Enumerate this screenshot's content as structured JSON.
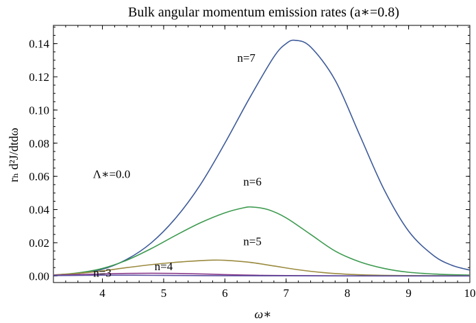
{
  "chart_data": {
    "type": "line",
    "title": "Bulk angular momentum emission rates (a∗=0.8)",
    "xlabel": "ω∗",
    "ylabel": "rₕ d²J/dtdω",
    "xlim": [
      3.2,
      10.0
    ],
    "ylim": [
      -0.004,
      0.151
    ],
    "x_ticks": [
      {
        "value": 4,
        "label": "4"
      },
      {
        "value": 5,
        "label": "5"
      },
      {
        "value": 6,
        "label": "6"
      },
      {
        "value": 7,
        "label": "7"
      },
      {
        "value": 8,
        "label": "8"
      },
      {
        "value": 9,
        "label": "9"
      },
      {
        "value": 10,
        "label": "10"
      }
    ],
    "y_ticks": [
      {
        "value": 0.0,
        "label": "0.00"
      },
      {
        "value": 0.02,
        "label": "0.02"
      },
      {
        "value": 0.04,
        "label": "0.04"
      },
      {
        "value": 0.06,
        "label": "0.06"
      },
      {
        "value": 0.08,
        "label": "0.08"
      },
      {
        "value": 0.1,
        "label": "0.10"
      },
      {
        "value": 0.12,
        "label": "0.12"
      },
      {
        "value": 0.14,
        "label": "0.14"
      }
    ],
    "grid": false,
    "series": [
      {
        "name": "n=7",
        "color": "#3d5a99",
        "points": [
          [
            3.2,
            0.0005
          ],
          [
            3.6,
            0.0015
          ],
          [
            4.0,
            0.004
          ],
          [
            4.4,
            0.01
          ],
          [
            4.8,
            0.02
          ],
          [
            5.2,
            0.035
          ],
          [
            5.6,
            0.055
          ],
          [
            6.0,
            0.08
          ],
          [
            6.4,
            0.107
          ],
          [
            6.8,
            0.132
          ],
          [
            7.0,
            0.14
          ],
          [
            7.15,
            0.142
          ],
          [
            7.4,
            0.138
          ],
          [
            7.8,
            0.118
          ],
          [
            8.2,
            0.085
          ],
          [
            8.6,
            0.052
          ],
          [
            9.0,
            0.027
          ],
          [
            9.4,
            0.0125
          ],
          [
            9.7,
            0.0065
          ],
          [
            10.0,
            0.0035
          ]
        ]
      },
      {
        "name": "n=6",
        "color": "#3c9a4f",
        "points": [
          [
            3.2,
            0.0005
          ],
          [
            3.6,
            0.0018
          ],
          [
            4.0,
            0.0045
          ],
          [
            4.4,
            0.0095
          ],
          [
            4.8,
            0.0165
          ],
          [
            5.2,
            0.0245
          ],
          [
            5.6,
            0.032
          ],
          [
            6.0,
            0.038
          ],
          [
            6.3,
            0.041
          ],
          [
            6.45,
            0.0415
          ],
          [
            6.7,
            0.04
          ],
          [
            7.0,
            0.035
          ],
          [
            7.4,
            0.025
          ],
          [
            7.8,
            0.015
          ],
          [
            8.2,
            0.0085
          ],
          [
            8.6,
            0.0045
          ],
          [
            9.0,
            0.0022
          ],
          [
            9.5,
            0.001
          ],
          [
            10.0,
            0.0005
          ]
        ]
      },
      {
        "name": "n=5",
        "color": "#9a8a3e",
        "points": [
          [
            3.2,
            0.0006
          ],
          [
            3.6,
            0.0015
          ],
          [
            4.0,
            0.003
          ],
          [
            4.4,
            0.005
          ],
          [
            4.8,
            0.0068
          ],
          [
            5.2,
            0.0082
          ],
          [
            5.6,
            0.0092
          ],
          [
            5.8,
            0.0095
          ],
          [
            6.0,
            0.0094
          ],
          [
            6.4,
            0.0082
          ],
          [
            6.8,
            0.006
          ],
          [
            7.2,
            0.0037
          ],
          [
            7.6,
            0.002
          ],
          [
            8.0,
            0.001
          ],
          [
            8.5,
            0.0004
          ],
          [
            9.0,
            0.0002
          ],
          [
            10.0,
            0.0001
          ]
        ]
      },
      {
        "name": "n=4",
        "color": "#8a3a8a",
        "points": [
          [
            3.2,
            0.0004
          ],
          [
            3.6,
            0.0008
          ],
          [
            4.0,
            0.0012
          ],
          [
            4.4,
            0.0015
          ],
          [
            4.8,
            0.0016
          ],
          [
            5.2,
            0.0015
          ],
          [
            5.6,
            0.0012
          ],
          [
            6.0,
            0.0008
          ],
          [
            6.5,
            0.0004
          ],
          [
            7.0,
            0.0002
          ],
          [
            8.0,
            5e-05
          ],
          [
            10.0,
            0.0
          ]
        ]
      },
      {
        "name": "n=3",
        "color": "#5a4ea0",
        "points": [
          [
            3.2,
            0.0002
          ],
          [
            3.6,
            0.0003
          ],
          [
            4.0,
            0.0004
          ],
          [
            4.5,
            0.0004
          ],
          [
            5.0,
            0.0003
          ],
          [
            5.5,
            0.0002
          ],
          [
            6.0,
            0.0001
          ],
          [
            7.0,
            3e-05
          ],
          [
            10.0,
            0.0
          ]
        ]
      }
    ],
    "annotations": [
      {
        "text": "n=7",
        "x": 6.35,
        "y": 0.129
      },
      {
        "text": "n=6",
        "x": 6.45,
        "y": 0.0545
      },
      {
        "text": "n=5",
        "x": 6.45,
        "y": 0.0185
      },
      {
        "text": "n=4",
        "x": 5.0,
        "y": 0.0035
      },
      {
        "text": "n=3",
        "x": 4.0,
        "y": -0.0005
      },
      {
        "text": "Λ∗=0.0",
        "x": 4.15,
        "y": 0.059
      }
    ]
  }
}
